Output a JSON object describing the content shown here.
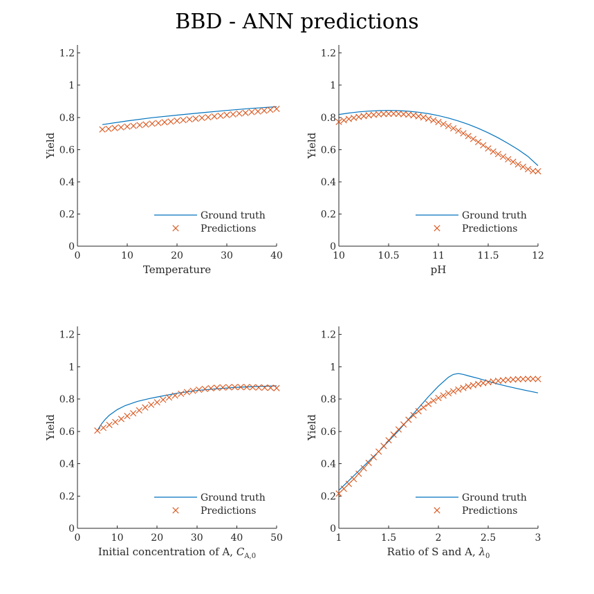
{
  "figure_title": "BBD - ANN predictions",
  "chart_data": [
    {
      "type": "line",
      "title": "",
      "xlabel": "Temperature",
      "ylabel": "Yield",
      "xlim": [
        0,
        40
      ],
      "ylim": [
        0,
        1.25
      ],
      "xticks": [
        "0",
        "10",
        "20",
        "30",
        "40"
      ],
      "yticks": [
        "0",
        "0.2",
        "0.4",
        "0.6",
        "0.8",
        "1",
        "1.2"
      ],
      "grid": false,
      "legend_position": "bottom-right",
      "series": [
        {
          "name": "Ground truth",
          "style": "line",
          "color": "#0072BD",
          "x": [
            5,
            10,
            15,
            20,
            25,
            30,
            35,
            40
          ],
          "y": [
            0.755,
            0.778,
            0.798,
            0.814,
            0.829,
            0.843,
            0.856,
            0.866
          ]
        },
        {
          "name": "Predictions",
          "style": "x-markers",
          "color": "#D95319",
          "x": [
            5,
            6.25,
            7.5,
            8.75,
            10,
            11.25,
            12.5,
            13.75,
            15,
            16.25,
            17.5,
            18.75,
            20,
            21.25,
            22.5,
            23.75,
            25,
            26.25,
            27.5,
            28.75,
            30,
            31.25,
            32.5,
            33.75,
            35,
            36.25,
            37.5,
            38.75,
            40
          ],
          "y": [
            0.725,
            0.729,
            0.734,
            0.738,
            0.743,
            0.747,
            0.752,
            0.756,
            0.761,
            0.765,
            0.77,
            0.774,
            0.779,
            0.783,
            0.788,
            0.792,
            0.797,
            0.801,
            0.806,
            0.81,
            0.815,
            0.819,
            0.824,
            0.828,
            0.833,
            0.837,
            0.842,
            0.847,
            0.853
          ]
        }
      ]
    },
    {
      "type": "line",
      "title": "",
      "xlabel": "pH",
      "ylabel": "Yield",
      "xlim": [
        10,
        12
      ],
      "ylim": [
        0,
        1.25
      ],
      "xticks": [
        "10",
        "10.5",
        "11",
        "11.5",
        "12"
      ],
      "yticks": [
        "0",
        "0.2",
        "0.4",
        "0.6",
        "0.8",
        "1",
        "1.2"
      ],
      "grid": false,
      "legend_position": "bottom-right",
      "series": [
        {
          "name": "Ground truth",
          "style": "line",
          "color": "#0072BD",
          "x": [
            10,
            10.1,
            10.2,
            10.3,
            10.4,
            10.5,
            10.6,
            10.7,
            10.8,
            10.9,
            11,
            11.1,
            11.2,
            11.3,
            11.4,
            11.5,
            11.6,
            11.7,
            11.8,
            11.9,
            12
          ],
          "y": [
            0.818,
            0.827,
            0.834,
            0.839,
            0.842,
            0.843,
            0.842,
            0.838,
            0.832,
            0.823,
            0.811,
            0.796,
            0.778,
            0.757,
            0.732,
            0.704,
            0.673,
            0.638,
            0.6,
            0.557,
            0.5
          ]
        },
        {
          "name": "Predictions",
          "style": "x-markers",
          "color": "#D95319",
          "x": [
            10,
            10.05,
            10.1,
            10.15,
            10.2,
            10.25,
            10.3,
            10.35,
            10.4,
            10.45,
            10.5,
            10.55,
            10.6,
            10.65,
            10.7,
            10.75,
            10.8,
            10.85,
            10.9,
            10.95,
            11,
            11.05,
            11.1,
            11.15,
            11.2,
            11.25,
            11.3,
            11.35,
            11.4,
            11.45,
            11.5,
            11.55,
            11.6,
            11.65,
            11.7,
            11.75,
            11.8,
            11.85,
            11.9,
            11.95,
            12
          ],
          "y": [
            0.772,
            0.782,
            0.79,
            0.797,
            0.803,
            0.808,
            0.813,
            0.816,
            0.819,
            0.821,
            0.822,
            0.823,
            0.822,
            0.82,
            0.817,
            0.813,
            0.807,
            0.8,
            0.792,
            0.782,
            0.771,
            0.759,
            0.746,
            0.732,
            0.717,
            0.701,
            0.684,
            0.666,
            0.647,
            0.627,
            0.607,
            0.588,
            0.572,
            0.556,
            0.54,
            0.524,
            0.508,
            0.493,
            0.478,
            0.467,
            0.465
          ]
        }
      ]
    },
    {
      "type": "line",
      "title": "",
      "xlabel_parts": [
        "Initial concentration of A, ",
        "C",
        "A,0"
      ],
      "ylabel": "Yield",
      "xlim": [
        0,
        50
      ],
      "ylim": [
        0,
        1.25
      ],
      "xticks": [
        "0",
        "10",
        "20",
        "30",
        "40",
        "50"
      ],
      "yticks": [
        "0",
        "0.2",
        "0.4",
        "0.6",
        "0.8",
        "1",
        "1.2"
      ],
      "grid": false,
      "legend_position": "bottom-right",
      "series": [
        {
          "name": "Ground truth",
          "style": "line",
          "color": "#0072BD",
          "x": [
            5,
            6,
            7,
            8,
            10,
            12,
            15,
            18,
            20,
            25,
            30,
            35,
            40,
            45,
            50
          ],
          "y": [
            0.605,
            0.645,
            0.675,
            0.7,
            0.735,
            0.76,
            0.785,
            0.803,
            0.813,
            0.836,
            0.853,
            0.864,
            0.873,
            0.878,
            0.882
          ]
        },
        {
          "name": "Predictions",
          "style": "x-markers",
          "color": "#D95319",
          "x": [
            5,
            6.5,
            8,
            9.5,
            11,
            12.5,
            14,
            15.5,
            17,
            18.5,
            20,
            21.5,
            23,
            24.5,
            26,
            27.5,
            29,
            30.5,
            32,
            33.5,
            35,
            36.5,
            38,
            39.5,
            41,
            42.5,
            44,
            45.5,
            47,
            48.5,
            50
          ],
          "y": [
            0.605,
            0.622,
            0.64,
            0.658,
            0.677,
            0.695,
            0.712,
            0.73,
            0.748,
            0.765,
            0.78,
            0.796,
            0.81,
            0.822,
            0.833,
            0.843,
            0.851,
            0.858,
            0.863,
            0.867,
            0.87,
            0.872,
            0.873,
            0.874,
            0.874,
            0.874,
            0.873,
            0.872,
            0.871,
            0.87,
            0.868
          ]
        }
      ]
    },
    {
      "type": "line",
      "title": "",
      "xlabel_parts": [
        "Ratio of S and A, ",
        "λ",
        "0"
      ],
      "ylabel": "Yield",
      "xlim": [
        1,
        3
      ],
      "ylim": [
        0,
        1.25
      ],
      "xticks": [
        "1",
        "1.5",
        "2",
        "2.5",
        "3"
      ],
      "yticks": [
        "0",
        "0.2",
        "0.4",
        "0.6",
        "0.8",
        "1",
        "1.2"
      ],
      "grid": false,
      "legend_position": "bottom-right",
      "series": [
        {
          "name": "Ground truth",
          "style": "line",
          "color": "#0072BD",
          "x": [
            1,
            1.1,
            1.2,
            1.3,
            1.4,
            1.5,
            1.6,
            1.7,
            1.8,
            1.9,
            2.0,
            2.1,
            2.15,
            2.2,
            2.25,
            2.3,
            2.4,
            2.5,
            2.6,
            2.7,
            2.8,
            2.9,
            3.0
          ],
          "y": [
            0.235,
            0.295,
            0.355,
            0.415,
            0.475,
            0.54,
            0.605,
            0.675,
            0.745,
            0.815,
            0.88,
            0.935,
            0.953,
            0.958,
            0.953,
            0.944,
            0.928,
            0.91,
            0.893,
            0.878,
            0.864,
            0.851,
            0.838
          ]
        },
        {
          "name": "Predictions",
          "style": "x-markers",
          "color": "#D95319",
          "x": [
            1,
            1.05,
            1.1,
            1.15,
            1.2,
            1.25,
            1.3,
            1.35,
            1.4,
            1.45,
            1.5,
            1.55,
            1.6,
            1.65,
            1.7,
            1.75,
            1.8,
            1.85,
            1.9,
            1.95,
            2.0,
            2.05,
            2.1,
            2.15,
            2.2,
            2.25,
            2.3,
            2.35,
            2.4,
            2.45,
            2.5,
            2.55,
            2.6,
            2.65,
            2.7,
            2.75,
            2.8,
            2.85,
            2.9,
            2.95,
            3.0
          ],
          "y": [
            0.215,
            0.245,
            0.275,
            0.305,
            0.338,
            0.372,
            0.405,
            0.44,
            0.475,
            0.51,
            0.545,
            0.58,
            0.612,
            0.643,
            0.672,
            0.7,
            0.725,
            0.748,
            0.77,
            0.79,
            0.807,
            0.822,
            0.836,
            0.848,
            0.859,
            0.869,
            0.878,
            0.886,
            0.893,
            0.899,
            0.904,
            0.909,
            0.913,
            0.916,
            0.919,
            0.921,
            0.923,
            0.924,
            0.925,
            0.925,
            0.924
          ]
        }
      ]
    }
  ]
}
